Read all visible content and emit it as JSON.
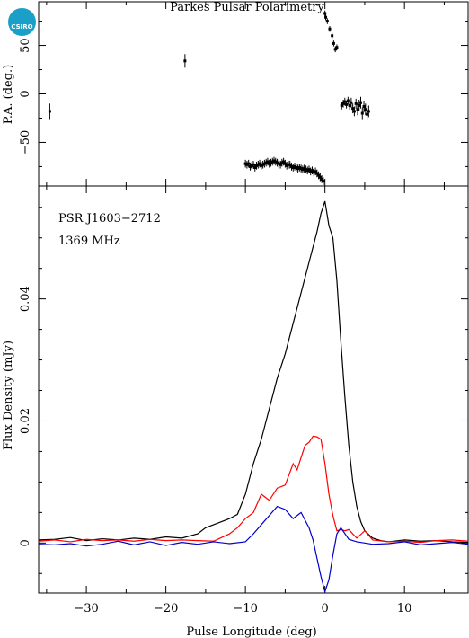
{
  "chart_data": [
    {
      "type": "scatter",
      "panel": "position-angle",
      "title": "Parkes Pulsar Polarimetry",
      "ylabel": "P.A. (deg.)",
      "xlim": [
        -36,
        18
      ],
      "ylim": [
        -95,
        95
      ],
      "y_ticks": [
        -50,
        0,
        50
      ],
      "x_ticks": [
        -30,
        -20,
        -10,
        0,
        10
      ],
      "points_x": [
        -34.6,
        -17.6,
        -10.0,
        -9.8,
        -9.6,
        -9.4,
        -9.2,
        -9.0,
        -8.8,
        -8.6,
        -8.4,
        -8.2,
        -8.0,
        -7.8,
        -7.6,
        -7.4,
        -7.2,
        -7.0,
        -6.8,
        -6.6,
        -6.4,
        -6.2,
        -6.0,
        -5.8,
        -5.6,
        -5.4,
        -5.2,
        -5.0,
        -4.8,
        -4.6,
        -4.4,
        -4.2,
        -4.0,
        -3.8,
        -3.6,
        -3.4,
        -3.2,
        -3.0,
        -2.8,
        -2.6,
        -2.4,
        -2.2,
        -2.0,
        -1.8,
        -1.6,
        -1.4,
        -1.2,
        -1.0,
        -0.8,
        -0.6,
        -0.4,
        -0.2,
        0.0,
        0.1,
        0.3,
        0.6,
        0.9,
        1.1,
        1.3,
        1.5,
        2.1,
        2.3,
        2.5,
        2.7,
        2.9,
        3.1,
        3.3,
        3.5,
        3.7,
        3.9,
        4.1,
        4.3,
        4.5,
        4.7,
        4.9,
        5.1,
        5.3,
        5.5
      ],
      "points_y": [
        -18,
        34,
        -72,
        -73,
        -72,
        -75,
        -74,
        -73,
        -76,
        -74,
        -73,
        -72,
        -74,
        -73,
        -72,
        -71,
        -70,
        -72,
        -71,
        -70,
        -69,
        -70,
        -71,
        -72,
        -73,
        -71,
        -70,
        -72,
        -74,
        -73,
        -73,
        -75,
        -76,
        -75,
        -76,
        -77,
        -76,
        -77,
        -78,
        -77,
        -78,
        -79,
        -78,
        -80,
        -79,
        -81,
        -80,
        -82,
        -84,
        -86,
        -88,
        -90,
        83,
        79,
        75,
        67,
        60,
        52,
        46,
        48,
        -12,
        -10,
        -8,
        -11,
        -7,
        -12,
        -9,
        -15,
        -18,
        -10,
        -16,
        -12,
        -9,
        -20,
        -13,
        -16,
        -21,
        -18
      ],
      "error_bars": [
        8,
        7,
        4,
        4,
        4,
        4,
        4,
        4,
        4,
        4,
        4,
        4,
        4,
        4,
        4,
        4,
        4,
        4,
        4,
        4,
        4,
        4,
        4,
        4,
        4,
        4,
        4,
        4,
        4,
        4,
        4,
        4,
        4,
        4,
        4,
        4,
        4,
        4,
        4,
        4,
        4,
        4,
        4,
        4,
        4,
        4,
        4,
        4,
        4,
        4,
        4,
        4,
        3,
        3,
        3,
        3,
        3,
        3,
        3,
        3,
        4,
        4,
        4,
        4,
        4,
        4,
        5,
        5,
        5,
        5,
        6,
        6,
        6,
        6,
        6,
        6,
        6,
        6
      ]
    },
    {
      "type": "line",
      "panel": "flux-profile",
      "xlabel": "Pulse Longitude (deg)",
      "ylabel": "Flux Density (mJy)",
      "xlim": [
        -36,
        18
      ],
      "ylim": [
        -0.0082,
        0.0585
      ],
      "x_ticks": [
        -30,
        -20,
        -10,
        0,
        10
      ],
      "y_ticks": [
        0,
        0.02,
        0.04
      ],
      "annotations": [
        "PSR J1603−2712",
        "1369 MHz"
      ],
      "series": [
        {
          "color": "#000000",
          "x": [
            -36,
            -34,
            -32,
            -30,
            -28,
            -26,
            -24,
            -22,
            -20,
            -18,
            -16,
            -15,
            -14,
            -13,
            -12,
            -11,
            -10,
            -9,
            -8,
            -7,
            -6,
            -5,
            -4,
            -3,
            -2,
            -1,
            -0.5,
            0,
            0.5,
            1,
            1.5,
            2,
            2.5,
            3,
            3.5,
            4,
            4.5,
            5,
            6,
            7,
            8,
            10,
            12,
            14,
            16,
            18
          ],
          "y": [
            0.0005,
            0.0006,
            0.0009,
            0.0004,
            0.0007,
            0.0005,
            0.0008,
            0.0006,
            0.001,
            0.0008,
            0.0015,
            0.0025,
            0.003,
            0.0035,
            0.004,
            0.0047,
            0.008,
            0.013,
            0.017,
            0.022,
            0.027,
            0.031,
            0.036,
            0.041,
            0.046,
            0.051,
            0.054,
            0.056,
            0.052,
            0.05,
            0.043,
            0.033,
            0.024,
            0.016,
            0.01,
            0.006,
            0.0035,
            0.002,
            0.0008,
            0.0004,
            0.0002,
            0.0005,
            0.0003,
            0.0004,
            0.0002,
            0.0001
          ]
        },
        {
          "color": "#ff0000",
          "x": [
            -36,
            -34,
            -32,
            -30,
            -28,
            -26,
            -24,
            -22,
            -20,
            -18,
            -16,
            -14,
            -12,
            -11,
            -10,
            -9,
            -8,
            -7,
            -6,
            -5,
            -4,
            -3.5,
            -3,
            -2.5,
            -2,
            -1.5,
            -1,
            -0.5,
            0,
            0.5,
            1,
            1.5,
            2,
            2.5,
            3,
            4,
            5,
            6,
            8,
            10,
            12,
            14,
            16,
            18
          ],
          "y": [
            0.0003,
            0.0005,
            0.0002,
            0.0006,
            0.0004,
            0.0005,
            0.0003,
            0.0006,
            0.0004,
            0.0005,
            0.0004,
            0.0003,
            0.0015,
            0.0025,
            0.004,
            0.005,
            0.008,
            0.007,
            0.009,
            0.0095,
            0.013,
            0.012,
            0.014,
            0.016,
            0.0165,
            0.0175,
            0.0174,
            0.017,
            0.013,
            0.008,
            0.0045,
            0.002,
            0.0022,
            0.002,
            0.0022,
            0.0008,
            0.002,
            0.0005,
            0.0002,
            0.0003,
            0.0001,
            0.0004,
            0.0005,
            0.0003
          ]
        },
        {
          "color": "#0000c8",
          "x": [
            -36,
            -34,
            -32,
            -30,
            -28,
            -26,
            -24,
            -22,
            -20,
            -18,
            -16,
            -14,
            -12,
            -10,
            -9,
            -8,
            -7,
            -6,
            -5,
            -4,
            -3,
            -2,
            -1.5,
            -1,
            -0.5,
            0,
            0.5,
            1,
            1.5,
            2,
            3,
            4,
            6,
            8,
            10,
            12,
            14,
            16,
            18
          ],
          "y": [
            -0.0002,
            -0.0003,
            -0.0001,
            -0.0005,
            -0.0002,
            0.0003,
            -0.0003,
            0.0002,
            -0.0004,
            0.0001,
            -0.0002,
            0.0002,
            -0.0001,
            0.0002,
            0.0015,
            0.003,
            0.0045,
            0.006,
            0.0055,
            0.004,
            0.005,
            0.0025,
            0.0005,
            -0.0025,
            -0.0055,
            -0.008,
            -0.006,
            -0.002,
            0.0015,
            0.0025,
            0.0006,
            0.0002,
            -0.0002,
            -0.0001,
            0.0002,
            -0.0003,
            -0.0001,
            0.0001,
            -0.0002
          ]
        }
      ]
    }
  ]
}
